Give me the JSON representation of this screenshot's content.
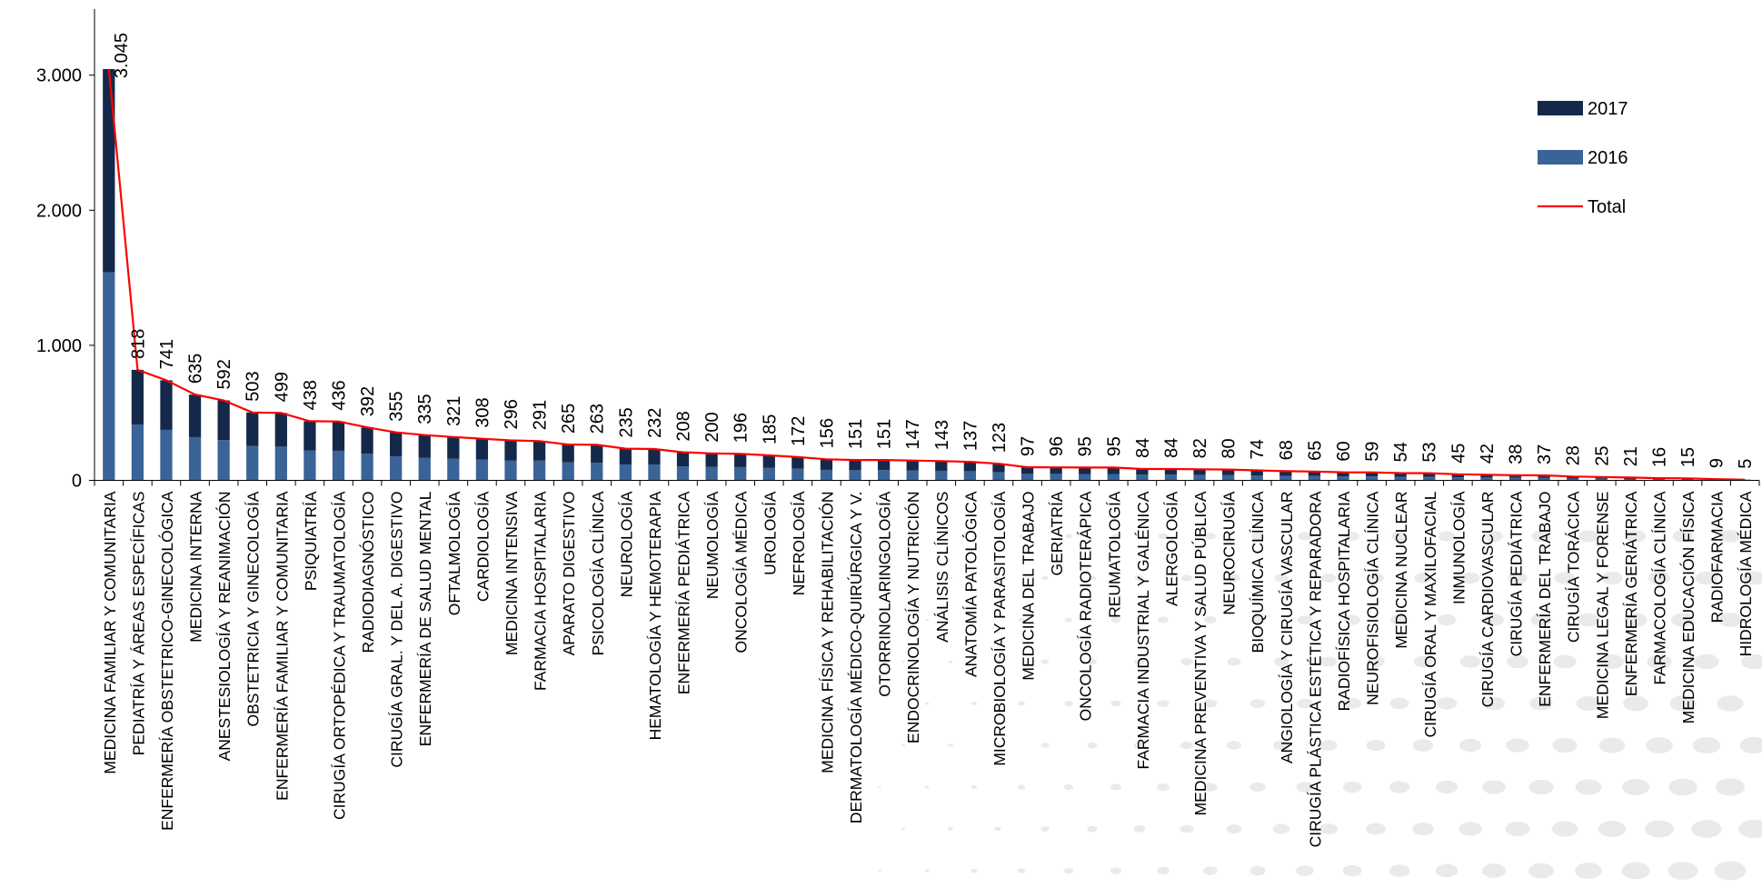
{
  "chart_data": {
    "type": "bar",
    "categories": [
      "MEDICINA FAMILIAR Y COMUNITARIA",
      "PEDIATRÍA Y ÁREAS ESPECÍFICAS",
      "ENFERMERÍA OBSTETRICO-GINECOLÓGICA",
      "MEDICINA INTERNA",
      "ANESTESIOLOGÍA Y REANIMACIÓN",
      "OBSTETRICIA Y GINECOLOGÍA",
      "ENFERMERÍA FAMILIAR Y COMUNITARIA",
      "PSIQUIATRÍA",
      "CIRUGÍA ORTOPÉDICA Y TRAUMATOLOGÍA",
      "RADIODIAGNÓSTICO",
      "CIRUGÍA GRAL. Y DEL A. DIGESTIVO",
      "ENFERMERÍA DE SALUD MENTAL",
      "OFTALMOLOGÍA",
      "CARDIOLOGÍA",
      "MEDICINA INTENSIVA",
      "FARMACIA HOSPITALARIA",
      "APARATO DIGESTIVO",
      "PSICOLOGÍA CLÍNICA",
      "NEUROLOGÍA",
      "HEMATOLOGÍA Y HEMOTERAPIA",
      "ENFERMERÍA PEDIÁTRICA",
      "NEUMOLOGÍA",
      "ONCOLOGÍA MÉDICA",
      "UROLOGÍA",
      "NEFROLOGÍA",
      "MEDICINA FÍSICA Y REHABILITACIÓN",
      "DERMATOLOGÍA MÉDICO-QUIRÚRGICA Y V.",
      "OTORRINOLARINGOLOGÍA",
      "ENDOCRINOLOGÍA Y NUTRICIÓN",
      "ANÁLISIS CLÍNICOS",
      "ANATOMÍA PATOLÓGICA",
      "MICROBIOLOGÍA Y PARASITOLOGÍA",
      "MEDICINA DEL TRABAJO",
      "GERIATRÍA",
      "ONCOLOGÍA RADIOTERÁPICA",
      "REUMATOLOGÍA",
      "FARMACIA INDUSTRIAL Y GALÉNICA",
      "ALERGOLOGÍA",
      "MEDICINA PREVENTIVA Y SALUD PÚBLICA",
      "NEUROCIRUGÍA",
      "BIOQUÍMICA CLÍNICA",
      "ANGIOLOGÍA Y CIRUGÍA VASCULAR",
      "CIRUGÍA PLÁSTICA ESTÉTICA Y REPARADORA",
      "RADIOFÍSICA HOSPITALARIA",
      "NEUROFISIOLOGÍA CLÍNICA",
      "MEDICINA NUCLEAR",
      "CIRUGÍA ORAL Y MAXILOFACIAL",
      "INMUNOLOGÍA",
      "CIRUGÍA CARDIOVASCULAR",
      "CIRUGÍA PEDIÁTRICA",
      "ENFERMERÍA DEL TRABAJO",
      "CIRUGÍA TORÁCICA",
      "MEDICINA LEGAL Y FORENSE",
      "ENFERMERÍA GERIÁTRICA",
      "FARMACOLOGÍA CLÍNICA",
      "MEDICINA EDUCACIÓN FÍSICA",
      "RADIOFARMACIA",
      "HIDROLOGÍA MÉDICA"
    ],
    "series": [
      {
        "name": "2016",
        "kind": "bar",
        "color": "#3A6497",
        "values": [
          1540,
          412,
          374,
          320,
          298,
          254,
          250,
          220,
          219,
          197,
          178,
          168,
          161,
          154,
          148,
          146,
          133,
          131,
          118,
          116,
          104,
          100,
          98,
          92,
          86,
          78,
          75,
          76,
          73,
          71,
          68,
          61,
          48,
          48,
          47,
          47,
          42,
          42,
          41,
          40,
          37,
          34,
          32,
          30,
          29,
          27,
          26,
          22,
          21,
          19,
          18,
          14,
          12,
          10,
          8,
          7,
          4,
          2
        ]
      },
      {
        "name": "2017",
        "kind": "bar",
        "color": "#14294A",
        "values": [
          1505,
          406,
          367,
          315,
          294,
          249,
          249,
          218,
          217,
          195,
          177,
          167,
          160,
          154,
          148,
          145,
          132,
          132,
          117,
          116,
          104,
          100,
          98,
          93,
          86,
          78,
          76,
          75,
          74,
          72,
          69,
          62,
          49,
          48,
          48,
          48,
          42,
          42,
          41,
          40,
          37,
          34,
          33,
          30,
          30,
          27,
          27,
          23,
          21,
          19,
          19,
          14,
          13,
          11,
          8,
          8,
          5,
          3
        ]
      },
      {
        "name": "Total",
        "kind": "line",
        "color": "#FF0000",
        "values": [
          3045,
          818,
          741,
          635,
          592,
          503,
          499,
          438,
          436,
          392,
          355,
          335,
          321,
          308,
          296,
          291,
          265,
          263,
          235,
          232,
          208,
          200,
          196,
          185,
          172,
          156,
          151,
          151,
          147,
          143,
          137,
          123,
          97,
          96,
          95,
          95,
          84,
          84,
          82,
          80,
          74,
          68,
          65,
          60,
          59,
          54,
          53,
          45,
          42,
          38,
          37,
          28,
          25,
          21,
          16,
          15,
          9,
          5
        ]
      }
    ],
    "data_labels": [
      "3.045",
      "818",
      "741",
      "635",
      "592",
      "503",
      "499",
      "438",
      "436",
      "392",
      "355",
      "335",
      "321",
      "308",
      "296",
      "291",
      "265",
      "263",
      "235",
      "232",
      "208",
      "200",
      "196",
      "185",
      "172",
      "156",
      "151",
      "151",
      "147",
      "143",
      "137",
      "123",
      "97",
      "96",
      "95",
      "95",
      "84",
      "84",
      "82",
      "80",
      "74",
      "68",
      "65",
      "60",
      "59",
      "54",
      "53",
      "45",
      "42",
      "38",
      "37",
      "28",
      "25",
      "21",
      "16",
      "15",
      "9",
      "5"
    ],
    "yticks": [
      {
        "value": 0,
        "label": "0"
      },
      {
        "value": 1000,
        "label": "1.000"
      },
      {
        "value": 2000,
        "label": "2.000"
      },
      {
        "value": 3000,
        "label": "3.000"
      }
    ],
    "ylim": [
      0,
      3500
    ],
    "grid": false,
    "legend_position": "top-right",
    "legend": [
      {
        "label": "2017",
        "symbol": "bar",
        "color": "#14294A"
      },
      {
        "label": "2016",
        "symbol": "bar",
        "color": "#3A6497"
      },
      {
        "label": "Total",
        "symbol": "line",
        "color": "#FF0000"
      }
    ]
  }
}
